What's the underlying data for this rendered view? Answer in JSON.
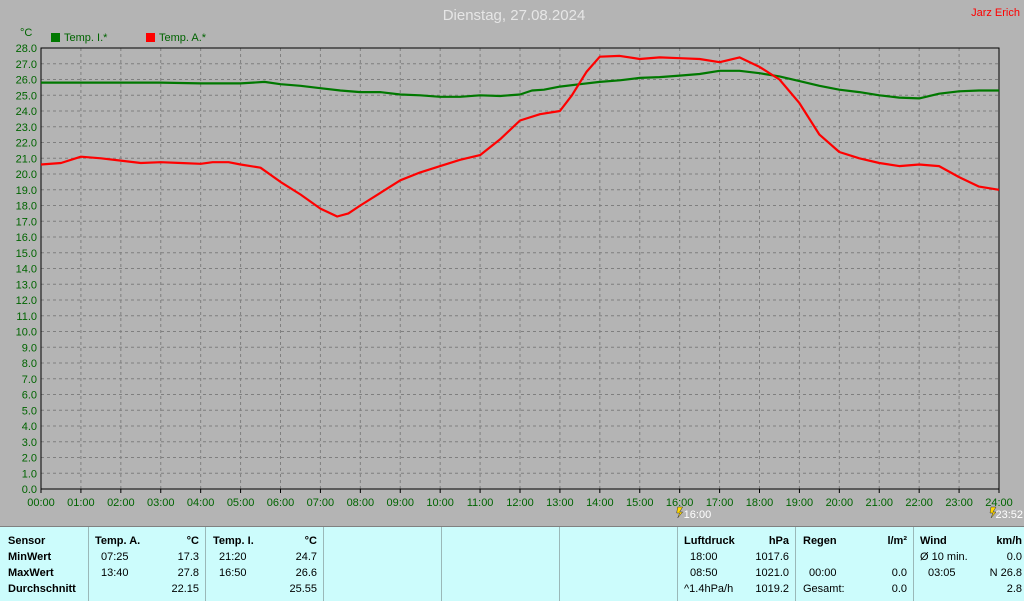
{
  "header": {
    "title": "Dienstag, 27.08.2024",
    "author": "Jarz Erich",
    "y_unit": "°C"
  },
  "colors": {
    "background": "#b4b4b4",
    "plot_border": "#000000",
    "grid": "#7f7f7f",
    "axis_text": "#006400",
    "series_inside": "#007800",
    "series_outside": "#ff0000",
    "panel": "#ccfcfc",
    "marker": "#ffd700"
  },
  "markers": [
    {
      "label": "16:00",
      "icon": "lightning-icon"
    },
    {
      "label": "23:52",
      "icon": "lightning-icon"
    }
  ],
  "chart_data": {
    "type": "line",
    "title": "Dienstag, 27.08.2024",
    "ylabel": "°C",
    "xlabel": "",
    "ylim": [
      0,
      28
    ],
    "xlim": [
      0,
      24
    ],
    "y_ticks": [
      "0.0",
      "1.0",
      "2.0",
      "3.0",
      "4.0",
      "5.0",
      "6.0",
      "7.0",
      "8.0",
      "9.0",
      "10.0",
      "11.0",
      "12.0",
      "13.0",
      "14.0",
      "15.0",
      "16.0",
      "17.0",
      "18.0",
      "19.0",
      "20.0",
      "21.0",
      "22.0",
      "23.0",
      "24.0",
      "25.0",
      "26.0",
      "27.0",
      "28.0"
    ],
    "x_ticks": [
      "00:00",
      "01:00",
      "02:00",
      "03:00",
      "04:00",
      "05:00",
      "06:00",
      "07:00",
      "08:00",
      "09:00",
      "10:00",
      "11:00",
      "12:00",
      "13:00",
      "14:00",
      "15:00",
      "16:00",
      "17:00",
      "18:00",
      "19:00",
      "20:00",
      "21:00",
      "22:00",
      "23:00",
      "24:00"
    ],
    "grid": true,
    "legend_position": "top-left",
    "series": [
      {
        "name": "Temp. I.*",
        "color": "#007800",
        "x": [
          0,
          1,
          2,
          3,
          4,
          5,
          5.6,
          6,
          6.5,
          7,
          7.5,
          8,
          8.5,
          9,
          9.5,
          10,
          10.5,
          11,
          11.5,
          12,
          12.3,
          12.6,
          13,
          13.5,
          14,
          14.5,
          15,
          15.5,
          16,
          16.5,
          17,
          17.5,
          18,
          18.5,
          19,
          19.5,
          20,
          20.5,
          21,
          21.5,
          22,
          22.5,
          23,
          23.5,
          24
        ],
        "y": [
          25.8,
          25.8,
          25.8,
          25.8,
          25.75,
          25.75,
          25.85,
          25.7,
          25.6,
          25.45,
          25.3,
          25.2,
          25.2,
          25.05,
          25.0,
          24.9,
          24.9,
          25.0,
          24.95,
          25.05,
          25.3,
          25.35,
          25.55,
          25.7,
          25.85,
          25.95,
          26.1,
          26.15,
          26.25,
          26.35,
          26.55,
          26.55,
          26.4,
          26.2,
          25.9,
          25.6,
          25.35,
          25.2,
          25.0,
          24.85,
          24.8,
          25.1,
          25.25,
          25.3,
          25.3
        ]
      },
      {
        "name": "Temp. A.*",
        "color": "#ff0000",
        "x": [
          0,
          0.5,
          1,
          1.5,
          2,
          2.5,
          3,
          3.5,
          4,
          4.3,
          4.7,
          5,
          5.5,
          6,
          6.5,
          7,
          7.42,
          7.7,
          8,
          8.5,
          9,
          9.5,
          10,
          10.5,
          11,
          11.5,
          12,
          12.5,
          13,
          13.3,
          13.67,
          14,
          14.5,
          15,
          15.5,
          16,
          16.5,
          17,
          17.5,
          18,
          18.5,
          19,
          19.5,
          20,
          20.5,
          21,
          21.5,
          22,
          22.5,
          23,
          23.5,
          24
        ],
        "y": [
          20.6,
          20.7,
          21.1,
          21.0,
          20.85,
          20.7,
          20.75,
          20.7,
          20.65,
          20.75,
          20.75,
          20.6,
          20.4,
          19.5,
          18.7,
          17.8,
          17.3,
          17.5,
          18.0,
          18.8,
          19.6,
          20.1,
          20.5,
          20.9,
          21.2,
          22.2,
          23.4,
          23.8,
          24.0,
          25.0,
          26.5,
          27.45,
          27.5,
          27.3,
          27.4,
          27.35,
          27.3,
          27.1,
          27.4,
          26.8,
          26.0,
          24.5,
          22.5,
          21.4,
          21.0,
          20.7,
          20.5,
          20.6,
          20.5,
          19.8,
          19.2,
          19.0
        ]
      }
    ]
  },
  "stats": {
    "sensor": {
      "header": "Sensor",
      "rows": [
        "MinWert",
        "MaxWert",
        "Durchschnitt"
      ]
    },
    "temp_a": {
      "header": "Temp. A.",
      "unit": "°C",
      "rows": [
        {
          "time": "07:25",
          "value": "17.3"
        },
        {
          "time": "13:40",
          "value": "27.8"
        },
        {
          "time": "",
          "value": "22.15"
        }
      ]
    },
    "temp_i": {
      "header": "Temp. I.",
      "unit": "°C",
      "rows": [
        {
          "time": "21:20",
          "value": "24.7"
        },
        {
          "time": "16:50",
          "value": "26.6"
        },
        {
          "time": "",
          "value": "25.55"
        }
      ]
    },
    "luftdruck": {
      "header": "Luftdruck",
      "unit": "hPa",
      "rows": [
        {
          "time": "18:00",
          "value": "1017.6"
        },
        {
          "time": "08:50",
          "value": "1021.0"
        },
        {
          "time": "^1.4hPa/h",
          "value": "1019.2"
        }
      ]
    },
    "regen": {
      "header": "Regen",
      "unit": "l/m²",
      "rows": [
        {
          "time": "",
          "value": ""
        },
        {
          "time": "00:00",
          "value": "0.0"
        },
        {
          "time": "Gesamt:",
          "value": "0.0"
        }
      ]
    },
    "wind": {
      "header": "Wind",
      "unit": "km/h",
      "rows": [
        {
          "time": "Ø 10 min.",
          "value": "0.0"
        },
        {
          "time": "03:05",
          "value": "N 26.8"
        },
        {
          "time": "",
          "value": "2.8"
        }
      ]
    }
  }
}
